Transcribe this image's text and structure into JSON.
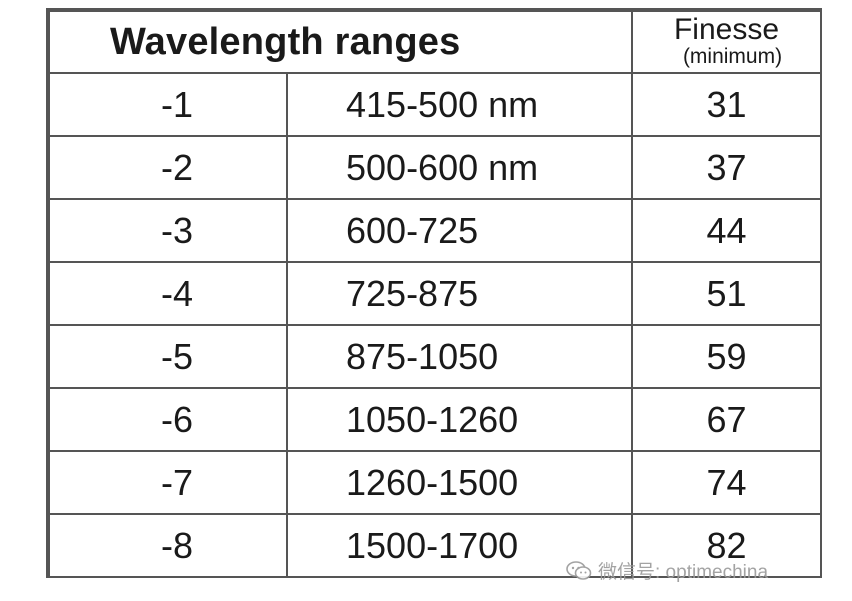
{
  "table": {
    "title": "Wavelength ranges",
    "finesse_header": "Finesse",
    "finesse_subheader": "(minimum)",
    "rows": [
      {
        "suffix": "-1",
        "range": "415-500 nm",
        "finesse": "31"
      },
      {
        "suffix": "-2",
        "range": "500-600 nm",
        "finesse": "37"
      },
      {
        "suffix": "-3",
        "range": "600-725",
        "finesse": "44"
      },
      {
        "suffix": "-4",
        "range": "725-875",
        "finesse": "51"
      },
      {
        "suffix": "-5",
        "range": "875-1050",
        "finesse": "59"
      },
      {
        "suffix": "-6",
        "range": "1050-1260",
        "finesse": "67"
      },
      {
        "suffix": "-7",
        "range": "1260-1500",
        "finesse": "74"
      },
      {
        "suffix": "-8",
        "range": "1500-1700",
        "finesse": "82"
      }
    ]
  },
  "watermark": {
    "icon": "wechat-icon",
    "text": "微信号: optimechina"
  },
  "colors": {
    "grid": "#555555",
    "text": "#1a1a1a",
    "watermark": "#9a9a9a"
  }
}
